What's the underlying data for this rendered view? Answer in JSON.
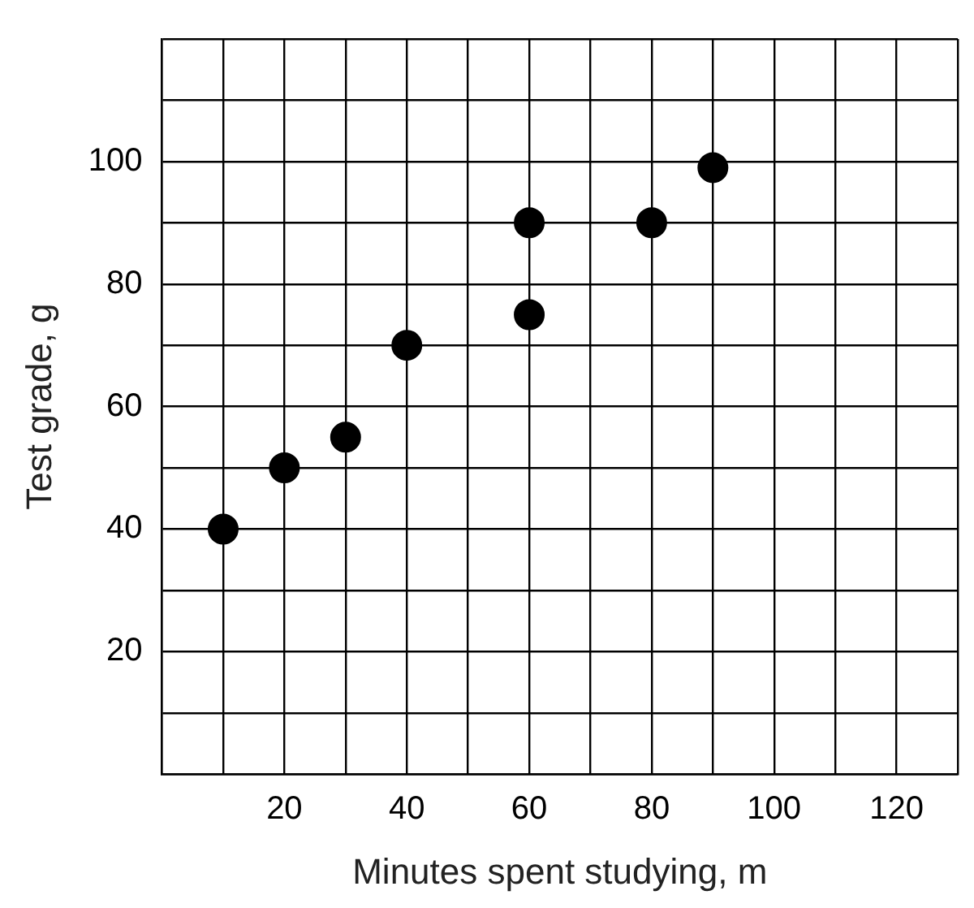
{
  "chart_data": {
    "type": "scatter",
    "xlabel": "Minutes spent studying, m",
    "ylabel": "Test grade, g",
    "x": [
      10,
      20,
      30,
      40,
      60,
      60,
      80,
      90
    ],
    "series": [
      {
        "color": "#000000",
        "values": [
          40,
          50,
          55,
          70,
          75,
          90,
          90,
          99
        ]
      }
    ],
    "xlim": [
      0,
      130
    ],
    "ylim": [
      0,
      120
    ],
    "xticks": [
      {
        "value": 0,
        "label": null
      },
      {
        "value": 10,
        "label": null
      },
      20,
      {
        "value": 30,
        "label": null
      },
      40,
      {
        "value": 50,
        "label": null
      },
      60,
      {
        "value": 70,
        "label": null
      },
      80,
      {
        "value": 90,
        "label": null
      },
      100,
      {
        "value": 110,
        "label": null
      },
      120,
      {
        "value": 130,
        "label": null
      }
    ],
    "yticks": [
      {
        "value": 0,
        "label": null
      },
      {
        "value": 10,
        "label": null
      },
      20,
      {
        "value": 30,
        "label": null
      },
      40,
      {
        "value": 50,
        "label": null
      },
      60,
      {
        "value": 70,
        "label": null
      },
      80,
      {
        "value": 90,
        "label": null
      },
      100,
      {
        "value": 110,
        "label": null
      },
      {
        "value": 120,
        "label": null
      }
    ],
    "grid": true,
    "marker": "circle"
  }
}
